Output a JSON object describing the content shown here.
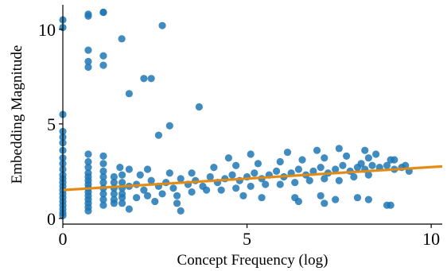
{
  "chart_data": {
    "type": "scatter",
    "title": "",
    "xlabel": "Concept Frequency (log)",
    "ylabel": "Embedding Magnitude",
    "xlim": [
      0,
      10.3
    ],
    "ylim": [
      -0.3,
      11.3
    ],
    "xticks": [
      0,
      5,
      10
    ],
    "yticks": [
      0,
      5,
      10
    ],
    "xtick_labels": [
      "0",
      "5",
      "10"
    ],
    "ytick_labels": [
      "0",
      "5",
      "10"
    ],
    "grid": false,
    "colors": {
      "points": "#1f77b4",
      "trend": "#e28b14"
    },
    "trend_line": {
      "x": [
        0,
        10.3
      ],
      "y": [
        1.5,
        2.75
      ]
    },
    "series": [
      {
        "points": [
          [
            0,
            10.5
          ],
          [
            0,
            10.1
          ],
          [
            0,
            5.5
          ],
          [
            0,
            4.6
          ],
          [
            0,
            4.3
          ],
          [
            0,
            4.0
          ],
          [
            0,
            3.6
          ],
          [
            0,
            3.2
          ],
          [
            0,
            2.9
          ],
          [
            0,
            2.6
          ],
          [
            0,
            2.3
          ],
          [
            0,
            2.1
          ],
          [
            0,
            1.9
          ],
          [
            0,
            1.7
          ],
          [
            0,
            1.5
          ],
          [
            0,
            1.3
          ],
          [
            0,
            1.1
          ],
          [
            0,
            0.9
          ],
          [
            0,
            0.7
          ],
          [
            0,
            0.5
          ],
          [
            0,
            0.3
          ],
          [
            0,
            0.15
          ],
          [
            0.69,
            10.7
          ],
          [
            0.69,
            10.8
          ],
          [
            0.69,
            8.9
          ],
          [
            0.69,
            8.3
          ],
          [
            0.69,
            8.0
          ],
          [
            0.69,
            3.4
          ],
          [
            0.69,
            3.0
          ],
          [
            0.69,
            2.7
          ],
          [
            0.69,
            2.4
          ],
          [
            0.69,
            2.2
          ],
          [
            0.69,
            2.0
          ],
          [
            0.69,
            1.8
          ],
          [
            0.69,
            1.6
          ],
          [
            0.69,
            1.4
          ],
          [
            0.69,
            1.2
          ],
          [
            0.69,
            1.0
          ],
          [
            0.69,
            0.8
          ],
          [
            0.69,
            0.6
          ],
          [
            0.69,
            0.4
          ],
          [
            1.1,
            10.9
          ],
          [
            1.1,
            10.9
          ],
          [
            1.1,
            8.6
          ],
          [
            1.1,
            8.1
          ],
          [
            1.1,
            3.3
          ],
          [
            1.1,
            2.9
          ],
          [
            1.1,
            2.5
          ],
          [
            1.1,
            2.2
          ],
          [
            1.1,
            1.9
          ],
          [
            1.1,
            1.6
          ],
          [
            1.1,
            1.3
          ],
          [
            1.1,
            1.0
          ],
          [
            1.1,
            0.7
          ],
          [
            1.39,
            2.2
          ],
          [
            1.39,
            1.9
          ],
          [
            1.39,
            1.6
          ],
          [
            1.39,
            1.3
          ],
          [
            1.39,
            1.0
          ],
          [
            1.39,
            0.8
          ],
          [
            1.61,
            2.3
          ],
          [
            1.61,
            1.9
          ],
          [
            1.61,
            1.6
          ],
          [
            1.61,
            1.3
          ],
          [
            1.61,
            1.1
          ],
          [
            1.61,
            0.8
          ],
          [
            1.6,
            9.5
          ],
          [
            1.8,
            6.6
          ],
          [
            2.2,
            7.4
          ],
          [
            2.4,
            7.4
          ],
          [
            2.7,
            10.2
          ],
          [
            3.7,
            5.9
          ],
          [
            2.9,
            4.9
          ],
          [
            2.6,
            4.4
          ],
          [
            1.55,
            2.7
          ],
          [
            1.8,
            2.6
          ],
          [
            2.0,
            1.1
          ],
          [
            1.8,
            0.5
          ],
          [
            2.5,
            0.9
          ],
          [
            3.2,
            0.4
          ],
          [
            2.3,
            2.6
          ],
          [
            1.8,
            1.7
          ],
          [
            2.0,
            1.8
          ],
          [
            2.2,
            1.5
          ],
          [
            2.4,
            2.0
          ],
          [
            2.6,
            1.7
          ],
          [
            2.8,
            1.9
          ],
          [
            3.0,
            1.6
          ],
          [
            3.2,
            2.1
          ],
          [
            3.4,
            1.8
          ],
          [
            3.6,
            2.0
          ],
          [
            3.8,
            1.7
          ],
          [
            4.0,
            2.2
          ],
          [
            4.2,
            1.9
          ],
          [
            4.4,
            2.1
          ],
          [
            4.6,
            2.3
          ],
          [
            4.8,
            2.0
          ],
          [
            5.0,
            2.2
          ],
          [
            5.2,
            2.4
          ],
          [
            5.4,
            2.1
          ],
          [
            5.6,
            2.3
          ],
          [
            5.8,
            2.5
          ],
          [
            6.0,
            2.2
          ],
          [
            6.2,
            2.4
          ],
          [
            6.4,
            2.6
          ],
          [
            6.6,
            2.3
          ],
          [
            6.8,
            2.5
          ],
          [
            7.0,
            2.7
          ],
          [
            7.2,
            2.4
          ],
          [
            7.4,
            2.6
          ],
          [
            7.6,
            2.8
          ],
          [
            7.8,
            2.5
          ],
          [
            8.0,
            2.7
          ],
          [
            8.2,
            2.6
          ],
          [
            8.4,
            2.8
          ],
          [
            8.6,
            2.7
          ],
          [
            8.8,
            2.8
          ],
          [
            9.0,
            2.6
          ],
          [
            9.2,
            2.7
          ],
          [
            9.4,
            2.5
          ],
          [
            2.1,
            2.3
          ],
          [
            2.9,
            2.4
          ],
          [
            3.5,
            2.4
          ],
          [
            4.1,
            2.7
          ],
          [
            4.7,
            2.8
          ],
          [
            5.3,
            2.9
          ],
          [
            5.9,
            3.0
          ],
          [
            6.5,
            3.1
          ],
          [
            7.1,
            3.2
          ],
          [
            7.7,
            3.3
          ],
          [
            8.3,
            3.2
          ],
          [
            8.9,
            3.1
          ],
          [
            4.5,
            3.2
          ],
          [
            5.1,
            3.4
          ],
          [
            6.1,
            3.5
          ],
          [
            6.9,
            3.6
          ],
          [
            7.5,
            3.7
          ],
          [
            8.2,
            3.6
          ],
          [
            2.3,
            1.2
          ],
          [
            2.7,
            1.3
          ],
          [
            3.1,
            1.2
          ],
          [
            3.5,
            1.4
          ],
          [
            3.9,
            1.5
          ],
          [
            4.3,
            1.5
          ],
          [
            4.7,
            1.6
          ],
          [
            5.1,
            1.7
          ],
          [
            5.5,
            1.8
          ],
          [
            5.9,
            1.8
          ],
          [
            6.3,
            1.9
          ],
          [
            6.7,
            2.0
          ],
          [
            7.1,
            2.1
          ],
          [
            7.5,
            2.0
          ],
          [
            7.9,
            2.2
          ],
          [
            8.3,
            2.3
          ],
          [
            4.9,
            1.2
          ],
          [
            5.4,
            1.1
          ],
          [
            6.3,
            1.1
          ],
          [
            7.0,
            1.2
          ],
          [
            7.4,
            1.0
          ],
          [
            8.0,
            1.1
          ],
          [
            6.4,
            0.9
          ],
          [
            7.1,
            0.8
          ],
          [
            8.3,
            1.0
          ],
          [
            8.8,
            0.7
          ],
          [
            8.9,
            0.7
          ],
          [
            3.1,
            0.8
          ],
          [
            9.3,
            2.8
          ],
          [
            9.0,
            3.1
          ],
          [
            8.5,
            3.4
          ],
          [
            8.1,
            2.9
          ]
        ]
      }
    ]
  }
}
